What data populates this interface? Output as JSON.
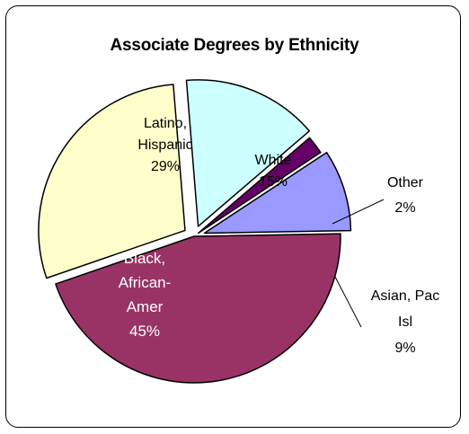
{
  "chart_data": {
    "type": "pie",
    "title": "Associate Degrees by Ethnicity",
    "slices": [
      {
        "label": [
          "Latino,",
          "Hispanic",
          "29%"
        ],
        "category": "Latino, Hispanic",
        "value": 29,
        "color": "#FFFFCC"
      },
      {
        "label": [
          "White",
          "15%"
        ],
        "category": "White",
        "value": 15,
        "color": "#CCFFFF"
      },
      {
        "label": [
          "Other",
          "2%"
        ],
        "category": "Other",
        "value": 2,
        "color": "#660066"
      },
      {
        "label": [
          "Asian, Pac",
          "Isl",
          "9%"
        ],
        "category": "Asian, Pac Isl",
        "value": 9,
        "color": "#9999FF"
      },
      {
        "label": [
          "Black,",
          "African-",
          "Amer",
          "45%"
        ],
        "category": "Black, African-Amer",
        "value": 45,
        "color": "#993366"
      }
    ],
    "legend": "none",
    "exploded": true
  }
}
